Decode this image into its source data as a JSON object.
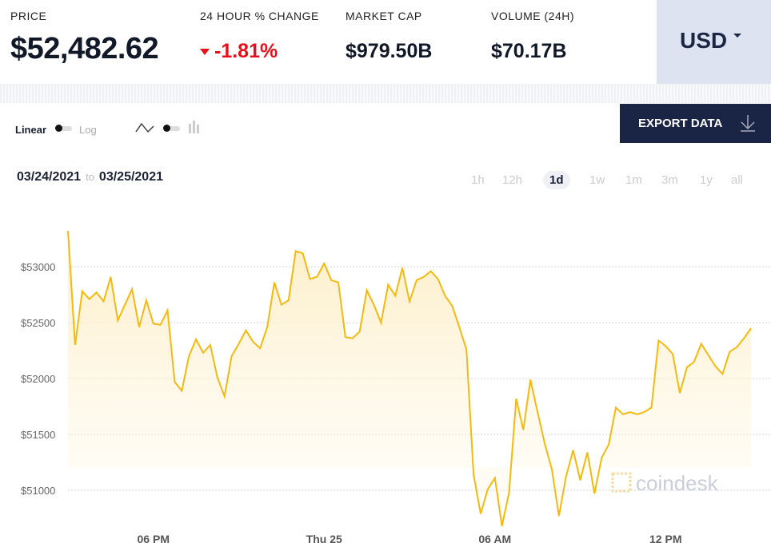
{
  "header": {
    "price": {
      "label": "PRICE",
      "value": "$52,482.62"
    },
    "change": {
      "label": "24 HOUR % CHANGE",
      "value": "-1.81%",
      "direction": "down",
      "color": "#e8101a"
    },
    "market_cap": {
      "label": "MARKET CAP",
      "value": "$979.50B"
    },
    "volume": {
      "label": "VOLUME (24H)",
      "value": "$70.17B"
    },
    "currency": "USD"
  },
  "controls": {
    "linear": "Linear",
    "log": "Log",
    "scale_selected": "Linear",
    "chart_style_selected": "line",
    "export_label": "EXPORT DATA"
  },
  "date_range": {
    "from": "03/24/2021",
    "to_word": "to",
    "to": "03/25/2021"
  },
  "ranges": [
    {
      "label": "1h"
    },
    {
      "label": "12h"
    },
    {
      "label": "1d",
      "active": true
    },
    {
      "label": "1w"
    },
    {
      "label": "1m"
    },
    {
      "label": "3m"
    },
    {
      "label": "1y"
    },
    {
      "label": "all"
    }
  ],
  "watermark": "coindesk",
  "colors": {
    "line": "#f5b90f",
    "fill": "#fdf3d6",
    "export_bg": "#1a2445",
    "currency_bg": "#dde3f0"
  },
  "chart_data": {
    "type": "area",
    "title": "",
    "xlabel": "",
    "ylabel": "",
    "ylim": [
      50650,
      53350
    ],
    "xlim": [
      "03/24 15:00",
      "03/25 15:00"
    ],
    "grid": true,
    "yticks": [
      {
        "value": 53000,
        "label": "$53000"
      },
      {
        "value": 52500,
        "label": "$52500"
      },
      {
        "value": 52000,
        "label": "$52000"
      },
      {
        "value": 51500,
        "label": "$51500"
      },
      {
        "value": 51000,
        "label": "$51000"
      }
    ],
    "xticks": [
      {
        "value": "03/24 18:00",
        "label": "06 PM"
      },
      {
        "value": "03/25 00:00",
        "label": "Thu 25"
      },
      {
        "value": "03/25 06:00",
        "label": "06 AM"
      },
      {
        "value": "03/25 12:00",
        "label": "12 PM"
      }
    ],
    "x": [
      "03/24 15:00",
      "03/24 15:15",
      "03/24 15:30",
      "03/24 15:45",
      "03/24 16:00",
      "03/24 16:15",
      "03/24 16:30",
      "03/24 16:45",
      "03/24 17:00",
      "03/24 17:15",
      "03/24 17:30",
      "03/24 17:45",
      "03/24 18:00",
      "03/24 18:15",
      "03/24 18:30",
      "03/24 18:45",
      "03/24 19:00",
      "03/24 19:15",
      "03/24 19:30",
      "03/24 19:45",
      "03/24 20:00",
      "03/24 20:15",
      "03/24 20:30",
      "03/24 20:45",
      "03/24 21:00",
      "03/24 21:15",
      "03/24 21:30",
      "03/24 21:45",
      "03/24 22:00",
      "03/24 22:15",
      "03/24 22:30",
      "03/24 22:45",
      "03/24 23:00",
      "03/24 23:15",
      "03/24 23:30",
      "03/24 23:45",
      "03/25 00:00",
      "03/25 00:15",
      "03/25 00:30",
      "03/25 00:45",
      "03/25 01:00",
      "03/25 01:15",
      "03/25 01:30",
      "03/25 01:45",
      "03/25 02:00",
      "03/25 02:15",
      "03/25 02:30",
      "03/25 02:45",
      "03/25 03:00",
      "03/25 03:15",
      "03/25 03:30",
      "03/25 03:45",
      "03/25 04:00",
      "03/25 04:15",
      "03/25 04:30",
      "03/25 04:45",
      "03/25 05:00",
      "03/25 05:15",
      "03/25 05:30",
      "03/25 05:45",
      "03/25 06:00",
      "03/25 06:15",
      "03/25 06:30",
      "03/25 06:45",
      "03/25 07:00",
      "03/25 07:15",
      "03/25 07:30",
      "03/25 07:45",
      "03/25 08:00",
      "03/25 08:15",
      "03/25 08:30",
      "03/25 08:45",
      "03/25 09:00",
      "03/25 09:15",
      "03/25 09:30",
      "03/25 09:45",
      "03/25 10:00",
      "03/25 10:15",
      "03/25 10:30",
      "03/25 10:45",
      "03/25 11:00",
      "03/25 11:15",
      "03/25 11:30",
      "03/25 11:45",
      "03/25 12:00",
      "03/25 12:15",
      "03/25 12:30",
      "03/25 12:45",
      "03/25 13:00",
      "03/25 13:15",
      "03/25 13:30",
      "03/25 13:45",
      "03/25 14:00",
      "03/25 14:15",
      "03/25 14:30",
      "03/25 14:45",
      "03/25 15:00"
    ],
    "values": [
      53320,
      52300,
      52780,
      52710,
      52770,
      52690,
      52910,
      52520,
      52660,
      52800,
      52460,
      52700,
      52490,
      52480,
      52610,
      51970,
      51890,
      52200,
      52350,
      52230,
      52300,
      52010,
      51840,
      52200,
      52310,
      52430,
      52330,
      52270,
      52460,
      52860,
      52660,
      52700,
      53140,
      53120,
      52890,
      52910,
      53030,
      52880,
      52860,
      52370,
      52360,
      52420,
      52790,
      52660,
      52500,
      52840,
      52740,
      52990,
      52690,
      52880,
      52910,
      52960,
      52890,
      52740,
      52650,
      52460,
      52260,
      51140,
      50790,
      51010,
      51110,
      50680,
      50980,
      51820,
      51540,
      51990,
      51700,
      51420,
      51190,
      50770,
      51120,
      51360,
      51090,
      51340,
      50970,
      51290,
      51410,
      51740,
      51680,
      51700,
      51680,
      51700,
      51740,
      52340,
      52290,
      52220,
      51870,
      52100,
      52150,
      52310,
      52210,
      52110,
      52040,
      52240,
      52280,
      52360,
      52450
    ]
  }
}
